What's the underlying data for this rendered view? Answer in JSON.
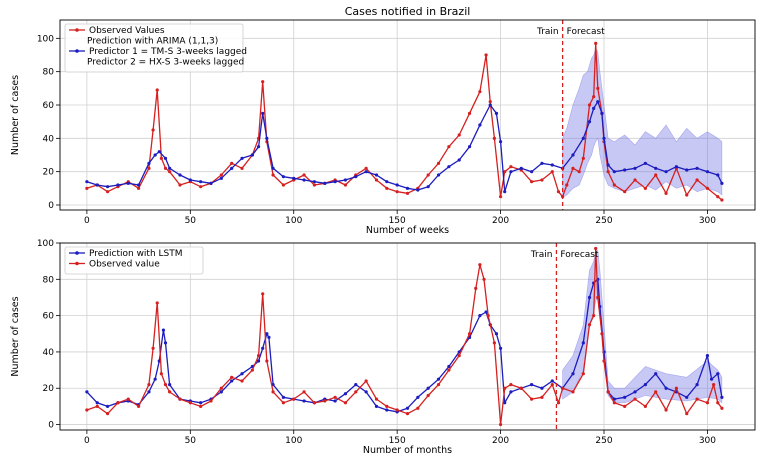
{
  "chart_data": [
    {
      "type": "line",
      "title": "Cases notified in Brazil",
      "xlabel": "Number of weeks",
      "ylabel": "Number of cases",
      "xlim": [
        -13,
        323
      ],
      "ylim": [
        -3,
        111
      ],
      "xticks": [
        0,
        50,
        100,
        150,
        200,
        250,
        300
      ],
      "yticks": [
        0,
        20,
        40,
        60,
        80,
        100
      ],
      "grid": true,
      "legend_position": "top-left",
      "split_x": 230,
      "train_label": "Train",
      "forecast_label": "Forecast",
      "legend_extra": "Prediction with ARIMA (1,1,3)",
      "series": [
        {
          "name": "Observed Values",
          "color": "#d62020",
          "x": [
            0,
            5,
            10,
            15,
            20,
            25,
            30,
            32,
            34,
            36,
            38,
            40,
            45,
            50,
            55,
            60,
            65,
            70,
            75,
            80,
            83,
            85,
            87,
            90,
            95,
            100,
            105,
            110,
            115,
            120,
            125,
            130,
            135,
            140,
            145,
            150,
            155,
            160,
            165,
            170,
            175,
            180,
            185,
            190,
            193,
            195,
            197,
            200,
            202,
            205,
            210,
            215,
            220,
            225,
            228,
            230,
            232,
            235,
            238,
            240,
            243,
            245,
            246,
            247,
            249,
            250,
            252,
            255,
            260,
            265,
            270,
            275,
            280,
            285,
            290,
            295,
            300,
            305,
            307
          ],
          "values": [
            10,
            12,
            8,
            11,
            14,
            10,
            22,
            45,
            69,
            28,
            22,
            20,
            12,
            14,
            11,
            13,
            18,
            25,
            22,
            30,
            40,
            74,
            38,
            18,
            12,
            15,
            18,
            12,
            13,
            15,
            12,
            18,
            22,
            15,
            10,
            8,
            7,
            10,
            18,
            25,
            35,
            42,
            55,
            68,
            90,
            62,
            40,
            5,
            20,
            23,
            21,
            14,
            15,
            20,
            8,
            5,
            12,
            22,
            20,
            28,
            60,
            65,
            97,
            70,
            55,
            38,
            20,
            12,
            8,
            15,
            10,
            18,
            7,
            22,
            6,
            15,
            10,
            5,
            3
          ]
        },
        {
          "name": "Predictor 1 = TM-S 3-weeks lagged\nPredictor 2 = HX-S 3-weeks lagged",
          "color": "#1c1cbf",
          "x": [
            0,
            5,
            10,
            15,
            20,
            25,
            30,
            33,
            35,
            38,
            40,
            45,
            50,
            55,
            60,
            65,
            70,
            75,
            80,
            83,
            85,
            87,
            90,
            95,
            100,
            105,
            110,
            115,
            120,
            125,
            130,
            135,
            140,
            145,
            150,
            155,
            160,
            165,
            170,
            175,
            180,
            185,
            190,
            195,
            198,
            200,
            202,
            205,
            210,
            215,
            220,
            225,
            230,
            235,
            240,
            243,
            245,
            247,
            249,
            250,
            252,
            255,
            260,
            265,
            270,
            275,
            280,
            285,
            290,
            295,
            300,
            305,
            307
          ],
          "values": [
            14,
            12,
            11,
            12,
            13,
            12,
            25,
            30,
            32,
            28,
            22,
            18,
            15,
            14,
            13,
            16,
            22,
            28,
            30,
            35,
            55,
            40,
            22,
            17,
            16,
            15,
            14,
            13,
            14,
            15,
            17,
            20,
            18,
            14,
            12,
            10,
            9,
            11,
            18,
            23,
            27,
            35,
            48,
            60,
            55,
            38,
            8,
            20,
            22,
            20,
            25,
            24,
            22,
            30,
            40,
            50,
            58,
            62,
            55,
            40,
            24,
            20,
            21,
            22,
            25,
            22,
            20,
            23,
            21,
            22,
            20,
            18,
            13
          ]
        }
      ],
      "confidence_band": {
        "x": [
          230,
          232,
          235,
          238,
          240,
          242,
          244,
          245,
          246,
          247,
          248,
          250,
          252,
          255,
          260,
          265,
          270,
          275,
          280,
          285,
          290,
          295,
          300,
          305,
          307
        ],
        "lower": [
          5,
          6,
          10,
          12,
          18,
          25,
          30,
          35,
          38,
          40,
          30,
          18,
          12,
          10,
          8,
          10,
          12,
          9,
          14,
          10,
          12,
          8,
          10,
          8,
          6
        ],
        "upper": [
          40,
          46,
          60,
          70,
          78,
          80,
          88,
          90,
          94,
          92,
          80,
          60,
          40,
          38,
          42,
          36,
          44,
          40,
          48,
          38,
          46,
          40,
          44,
          40,
          38
        ]
      }
    },
    {
      "type": "line",
      "title": "",
      "xlabel": "Number of months",
      "ylabel": "Number of cases",
      "xlim": [
        -13,
        323
      ],
      "ylim": [
        -3,
        100
      ],
      "xticks": [
        0,
        50,
        100,
        150,
        200,
        250,
        300
      ],
      "yticks": [
        0,
        20,
        40,
        60,
        80,
        100
      ],
      "grid": true,
      "legend_position": "top-left",
      "split_x": 227,
      "train_label": "Train",
      "forecast_label": "Forecast",
      "series": [
        {
          "name": "Prediction with LSTM",
          "color": "#1c1cbf",
          "x": [
            0,
            5,
            10,
            15,
            20,
            25,
            30,
            33,
            35,
            37,
            38,
            40,
            45,
            50,
            55,
            60,
            65,
            70,
            75,
            80,
            83,
            85,
            87,
            88,
            90,
            95,
            100,
            105,
            110,
            115,
            120,
            125,
            130,
            135,
            140,
            145,
            150,
            155,
            160,
            165,
            170,
            175,
            180,
            185,
            190,
            193,
            195,
            198,
            200,
            202,
            205,
            210,
            215,
            220,
            225,
            230,
            235,
            240,
            243,
            245,
            247,
            248,
            250,
            252,
            255,
            260,
            265,
            270,
            275,
            280,
            285,
            290,
            295,
            300,
            302,
            305,
            307
          ],
          "values": [
            18,
            12,
            10,
            12,
            13,
            11,
            18,
            25,
            35,
            52,
            45,
            22,
            14,
            13,
            12,
            14,
            18,
            24,
            28,
            32,
            35,
            42,
            50,
            48,
            22,
            15,
            14,
            13,
            12,
            14,
            13,
            17,
            22,
            18,
            10,
            8,
            7,
            9,
            15,
            20,
            25,
            32,
            40,
            48,
            60,
            62,
            55,
            50,
            42,
            12,
            18,
            20,
            22,
            20,
            24,
            20,
            28,
            45,
            70,
            78,
            80,
            65,
            40,
            18,
            14,
            15,
            18,
            22,
            28,
            20,
            18,
            15,
            22,
            38,
            25,
            28,
            15
          ]
        },
        {
          "name": "Observed value",
          "color": "#d62020",
          "x": [
            0,
            5,
            10,
            15,
            20,
            25,
            30,
            32,
            34,
            36,
            38,
            40,
            45,
            50,
            55,
            60,
            65,
            70,
            75,
            80,
            83,
            85,
            87,
            90,
            95,
            100,
            105,
            110,
            115,
            120,
            125,
            130,
            135,
            140,
            145,
            150,
            155,
            160,
            165,
            170,
            175,
            180,
            185,
            188,
            190,
            192,
            194,
            197,
            200,
            202,
            205,
            210,
            215,
            220,
            225,
            228,
            230,
            235,
            240,
            243,
            245,
            246,
            247,
            249,
            250,
            252,
            255,
            260,
            265,
            270,
            275,
            280,
            285,
            290,
            295,
            300,
            303,
            305,
            307
          ],
          "values": [
            8,
            10,
            6,
            12,
            14,
            10,
            22,
            42,
            67,
            28,
            22,
            18,
            14,
            12,
            10,
            13,
            20,
            26,
            24,
            30,
            38,
            72,
            35,
            18,
            12,
            14,
            18,
            12,
            13,
            15,
            12,
            18,
            24,
            14,
            10,
            8,
            6,
            9,
            16,
            22,
            30,
            38,
            50,
            75,
            88,
            80,
            60,
            45,
            0,
            20,
            22,
            20,
            14,
            15,
            22,
            12,
            20,
            18,
            28,
            55,
            60,
            97,
            70,
            50,
            35,
            18,
            12,
            10,
            14,
            10,
            18,
            8,
            20,
            6,
            14,
            12,
            22,
            12,
            9
          ]
        }
      ],
      "confidence_band": {
        "x": [
          230,
          235,
          240,
          243,
          245,
          246,
          247,
          248,
          250,
          252,
          255,
          260,
          270,
          280,
          290,
          300,
          305,
          307
        ],
        "lower": [
          14,
          18,
          30,
          55,
          62,
          68,
          70,
          60,
          35,
          16,
          12,
          12,
          16,
          14,
          13,
          15,
          14,
          12
        ],
        "upper": [
          30,
          38,
          55,
          85,
          90,
          95,
          96,
          85,
          55,
          24,
          20,
          20,
          32,
          28,
          26,
          35,
          30,
          26
        ]
      }
    }
  ]
}
